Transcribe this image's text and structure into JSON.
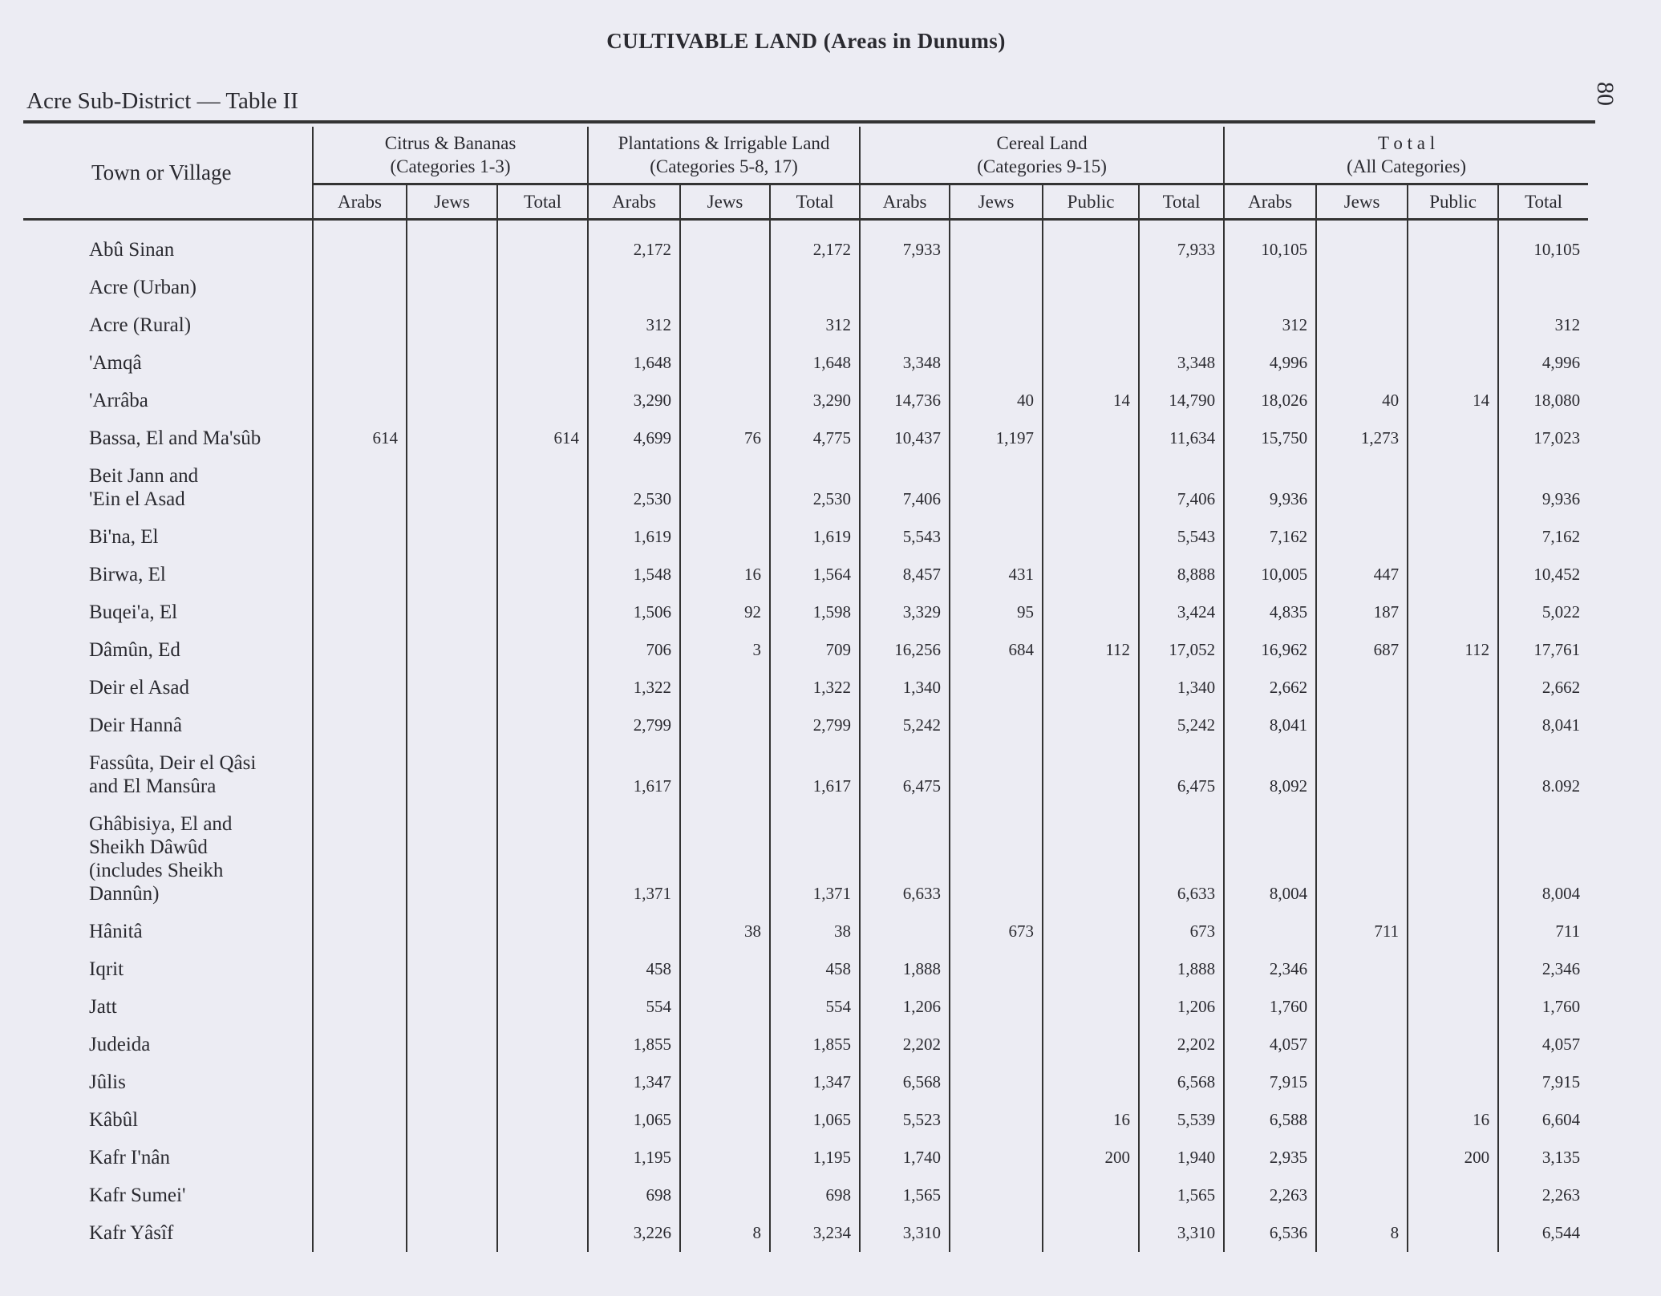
{
  "page": {
    "title": "CULTIVABLE LAND (Areas in Dunums)",
    "subtitle": "Acre Sub-District — Table II",
    "page_number": "80"
  },
  "table": {
    "name_header": "Town or Village",
    "groups": [
      {
        "label": "Citrus & Bananas",
        "sub": "(Categories 1-3)",
        "cols": [
          "Arabs",
          "Jews",
          "Total"
        ]
      },
      {
        "label": "Plantations & Irrigable Land",
        "sub": "(Categories 5-8, 17)",
        "cols": [
          "Arabs",
          "Jews",
          "Total"
        ]
      },
      {
        "label": "Cereal Land",
        "sub": "(Categories 9-15)",
        "cols": [
          "Arabs",
          "Jews",
          "Public",
          "Total"
        ]
      },
      {
        "label": "T o t a l",
        "sub": "(All Categories)",
        "cols": [
          "Arabs",
          "Jews",
          "Public",
          "Total"
        ]
      }
    ],
    "rows": [
      {
        "name": "Abû Sinan",
        "values": [
          "",
          "",
          "",
          "2,172",
          "",
          "2,172",
          "7,933",
          "",
          "",
          "7,933",
          "10,105",
          "",
          "",
          "10,105"
        ]
      },
      {
        "name": "Acre (Urban)",
        "values": [
          "",
          "",
          "",
          "",
          "",
          "",
          "",
          "",
          "",
          "",
          "",
          "",
          "",
          ""
        ]
      },
      {
        "name": "Acre (Rural)",
        "values": [
          "",
          "",
          "",
          "312",
          "",
          "312",
          "",
          "",
          "",
          "",
          "312",
          "",
          "",
          "312"
        ]
      },
      {
        "name": "'Amqâ",
        "values": [
          "",
          "",
          "",
          "1,648",
          "",
          "1,648",
          "3,348",
          "",
          "",
          "3,348",
          "4,996",
          "",
          "",
          "4,996"
        ]
      },
      {
        "name": "'Arrâba",
        "values": [
          "",
          "",
          "",
          "3,290",
          "",
          "3,290",
          "14,736",
          "40",
          "14",
          "14,790",
          "18,026",
          "40",
          "14",
          "18,080"
        ]
      },
      {
        "name": "Bassa, El and Ma'sûb",
        "values": [
          "614",
          "",
          "614",
          "4,699",
          "76",
          "4,775",
          "10,437",
          "1,197",
          "",
          "11,634",
          "15,750",
          "1,273",
          "",
          "17,023"
        ]
      },
      {
        "name": "Beit Jann and\n   'Ein el Asad",
        "values": [
          "",
          "",
          "",
          "2,530",
          "",
          "2,530",
          "7,406",
          "",
          "",
          "7,406",
          "9,936",
          "",
          "",
          "9,936"
        ]
      },
      {
        "name": "Bi'na, El",
        "values": [
          "",
          "",
          "",
          "1,619",
          "",
          "1,619",
          "5,543",
          "",
          "",
          "5,543",
          "7,162",
          "",
          "",
          "7,162"
        ]
      },
      {
        "name": "Birwa, El",
        "values": [
          "",
          "",
          "",
          "1,548",
          "16",
          "1,564",
          "8,457",
          "431",
          "",
          "8,888",
          "10,005",
          "447",
          "",
          "10,452"
        ]
      },
      {
        "name": "Buqei'a, El",
        "values": [
          "",
          "",
          "",
          "1,506",
          "92",
          "1,598",
          "3,329",
          "95",
          "",
          "3,424",
          "4,835",
          "187",
          "",
          "5,022"
        ]
      },
      {
        "name": "Dâmûn, Ed",
        "values": [
          "",
          "",
          "",
          "706",
          "3",
          "709",
          "16,256",
          "684",
          "112",
          "17,052",
          "16,962",
          "687",
          "112",
          "17,761"
        ]
      },
      {
        "name": "Deir el Asad",
        "values": [
          "",
          "",
          "",
          "1,322",
          "",
          "1,322",
          "1,340",
          "",
          "",
          "1,340",
          "2,662",
          "",
          "",
          "2,662"
        ]
      },
      {
        "name": "Deir Hannâ",
        "values": [
          "",
          "",
          "",
          "2,799",
          "",
          "2,799",
          "5,242",
          "",
          "",
          "5,242",
          "8,041",
          "",
          "",
          "8,041"
        ]
      },
      {
        "name": "Fassûta, Deir el Qâsi\n   and El Mansûra",
        "values": [
          "",
          "",
          "",
          "1,617",
          "",
          "1,617",
          "6,475",
          "",
          "",
          "6,475",
          "8,092",
          "",
          "",
          "8.092"
        ]
      },
      {
        "name": "Ghâbisiya, El and\n Sheikh Dâwûd\n (includes Sheikh\n Dannûn)",
        "values": [
          "",
          "",
          "",
          "1,371",
          "",
          "1,371",
          "6,633",
          "",
          "",
          "6,633",
          "8,004",
          "",
          "",
          "8,004"
        ]
      },
      {
        "name": "Hânitâ",
        "values": [
          "",
          "",
          "",
          "",
          "38",
          "38",
          "",
          "673",
          "",
          "673",
          "",
          "711",
          "",
          "711"
        ]
      },
      {
        "name": "Iqrit",
        "values": [
          "",
          "",
          "",
          "458",
          "",
          "458",
          "1,888",
          "",
          "",
          "1,888",
          "2,346",
          "",
          "",
          "2,346"
        ]
      },
      {
        "name": "Jatt",
        "values": [
          "",
          "",
          "",
          "554",
          "",
          "554",
          "1,206",
          "",
          "",
          "1,206",
          "1,760",
          "",
          "",
          "1,760"
        ]
      },
      {
        "name": "Judeida",
        "values": [
          "",
          "",
          "",
          "1,855",
          "",
          "1,855",
          "2,202",
          "",
          "",
          "2,202",
          "4,057",
          "",
          "",
          "4,057"
        ]
      },
      {
        "name": "Jûlis",
        "values": [
          "",
          "",
          "",
          "1,347",
          "",
          "1,347",
          "6,568",
          "",
          "",
          "6,568",
          "7,915",
          "",
          "",
          "7,915"
        ]
      },
      {
        "name": "Kâbûl",
        "values": [
          "",
          "",
          "",
          "1,065",
          "",
          "1,065",
          "5,523",
          "",
          "16",
          "5,539",
          "6,588",
          "",
          "16",
          "6,604"
        ]
      },
      {
        "name": "Kafr I'nân",
        "values": [
          "",
          "",
          "",
          "1,195",
          "",
          "1,195",
          "1,740",
          "",
          "200",
          "1,940",
          "2,935",
          "",
          "200",
          "3,135"
        ]
      },
      {
        "name": "Kafr Sumei'",
        "values": [
          "",
          "",
          "",
          "698",
          "",
          "698",
          "1,565",
          "",
          "",
          "1,565",
          "2,263",
          "",
          "",
          "2,263"
        ]
      },
      {
        "name": "Kafr Yâsîf",
        "values": [
          "",
          "",
          "",
          "3,226",
          "8",
          "3,234",
          "3,310",
          "",
          "",
          "3,310",
          "6,536",
          "8",
          "",
          "6,544"
        ]
      }
    ]
  }
}
